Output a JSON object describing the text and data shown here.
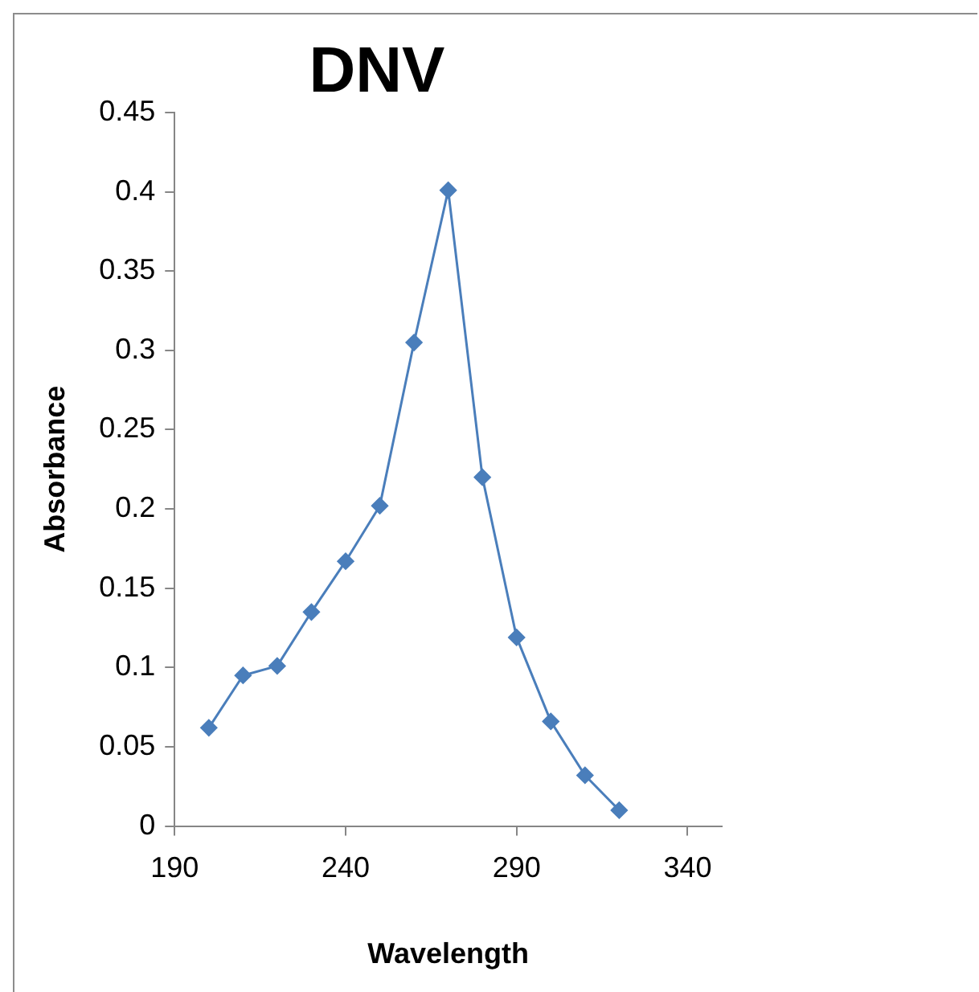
{
  "chart_data": {
    "type": "line",
    "title": "DNV",
    "xlabel": "Wavelength",
    "ylabel": "Absorbance",
    "x": [
      200,
      210,
      220,
      230,
      240,
      250,
      260,
      270,
      280,
      290,
      300,
      310,
      320
    ],
    "series": [
      {
        "color": "#4a7ebb",
        "values": [
          0.062,
          0.095,
          0.101,
          0.135,
          0.167,
          0.202,
          0.305,
          0.401,
          0.22,
          0.119,
          0.066,
          0.032,
          0.01
        ]
      }
    ],
    "xlim": [
      190,
      350
    ],
    "xticks": [
      190,
      240,
      290,
      340
    ],
    "ylim": [
      0,
      0.45
    ],
    "yticks": [
      0,
      0.05,
      0.1,
      0.15,
      0.2,
      0.25,
      0.3,
      0.35,
      0.4,
      0.45
    ],
    "grid": false,
    "legend": false,
    "marker": "diamond",
    "line_style": "solid"
  }
}
